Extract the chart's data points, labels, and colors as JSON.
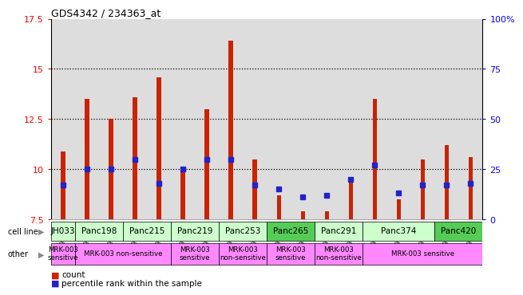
{
  "title": "GDS4342 / 234363_at",
  "samples": [
    "GSM924986",
    "GSM924992",
    "GSM924987",
    "GSM924995",
    "GSM924985",
    "GSM924991",
    "GSM924989",
    "GSM924990",
    "GSM924979",
    "GSM924982",
    "GSM924978",
    "GSM924994",
    "GSM924980",
    "GSM924983",
    "GSM924981",
    "GSM924984",
    "GSM924988",
    "GSM924993"
  ],
  "red_counts": [
    10.9,
    13.5,
    12.5,
    13.6,
    14.6,
    10.0,
    13.0,
    16.4,
    10.5,
    8.7,
    7.9,
    7.9,
    9.5,
    13.5,
    8.5,
    10.5,
    11.2,
    10.6
  ],
  "blue_pct_yval": [
    9.2,
    10.0,
    10.0,
    10.5,
    9.3,
    10.0,
    10.5,
    10.5,
    9.2,
    9.0,
    8.6,
    8.7,
    9.5,
    10.2,
    8.8,
    9.2,
    9.2,
    9.3
  ],
  "ymin": 7.5,
  "ymax": 17.5,
  "yticks": [
    7.5,
    10.0,
    12.5,
    15.0,
    17.5
  ],
  "ytick_labels": [
    "7.5",
    "10",
    "12.5",
    "15",
    "17.5"
  ],
  "right_yticks_pct": [
    0,
    25,
    50,
    75,
    100
  ],
  "right_ytick_labels": [
    "0",
    "25",
    "50",
    "75",
    "100%"
  ],
  "dotted_lines": [
    10.0,
    12.5,
    15.0
  ],
  "cell_lines": [
    {
      "name": "JH033",
      "start": 0,
      "end": 1,
      "color": "#ccffcc"
    },
    {
      "name": "Panc198",
      "start": 1,
      "end": 3,
      "color": "#ccffcc"
    },
    {
      "name": "Panc215",
      "start": 3,
      "end": 5,
      "color": "#ccffcc"
    },
    {
      "name": "Panc219",
      "start": 5,
      "end": 7,
      "color": "#ccffcc"
    },
    {
      "name": "Panc253",
      "start": 7,
      "end": 9,
      "color": "#ccffcc"
    },
    {
      "name": "Panc265",
      "start": 9,
      "end": 11,
      "color": "#55cc55"
    },
    {
      "name": "Panc291",
      "start": 11,
      "end": 13,
      "color": "#ccffcc"
    },
    {
      "name": "Panc374",
      "start": 13,
      "end": 16,
      "color": "#ccffcc"
    },
    {
      "name": "Panc420",
      "start": 16,
      "end": 18,
      "color": "#55cc55"
    }
  ],
  "other_annotations": [
    {
      "label": "MRK-003\nsensitive",
      "start": 0,
      "end": 1,
      "color": "#ff88ff"
    },
    {
      "label": "MRK-003 non-sensitive",
      "start": 1,
      "end": 5,
      "color": "#ff88ff"
    },
    {
      "label": "MRK-003\nsensitive",
      "start": 5,
      "end": 7,
      "color": "#ff88ff"
    },
    {
      "label": "MRK-003\nnon-sensitive",
      "start": 7,
      "end": 9,
      "color": "#ff88ff"
    },
    {
      "label": "MRK-003\nsensitive",
      "start": 9,
      "end": 11,
      "color": "#ff88ff"
    },
    {
      "label": "MRK-003\nnon-sensitive",
      "start": 11,
      "end": 13,
      "color": "#ff88ff"
    },
    {
      "label": "MRK-003 sensitive",
      "start": 13,
      "end": 18,
      "color": "#ff88ff"
    }
  ],
  "bar_color": "#cc2200",
  "blue_color": "#2222cc",
  "bar_width": 0.18,
  "xtick_bg": "#dddddd",
  "plot_bg": "#ffffff"
}
